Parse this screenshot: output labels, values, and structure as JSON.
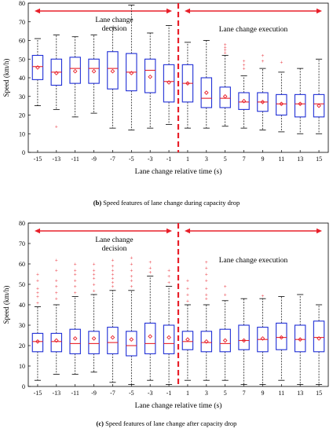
{
  "chart_data": [
    {
      "type": "box",
      "panel": "b",
      "title": "Speed features of lane change during capacity drop",
      "panel_label": "(b)",
      "xlabel": "Lane change relative time (s)",
      "ylabel": "Speed (km/h)",
      "ylim": [
        0,
        80
      ],
      "yticks": [
        0,
        10,
        20,
        30,
        40,
        50,
        60,
        70,
        80
      ],
      "categories": [
        "-15",
        "-13",
        "-11",
        "-9",
        "-7",
        "-5",
        "-3",
        "-1",
        "1",
        "3",
        "5",
        "7",
        "9",
        "11",
        "13",
        "15"
      ],
      "grid": false,
      "phase_labels": {
        "left": "Lane change\ndecision",
        "right": "Lane change execution"
      },
      "colors": {
        "box": "#1f2fd6",
        "median": "#e8202a",
        "mean": "#e8202a",
        "outlier": "#e8202a",
        "divider": "#e8202a",
        "arrow": "#e8202a",
        "whisker": "#000000"
      },
      "boxes": [
        {
          "x": "-15",
          "whislo": 25,
          "q1": 39,
          "med": 46,
          "q3": 52,
          "whishi": 61,
          "mean": 45.5,
          "fliers": []
        },
        {
          "x": "-13",
          "whislo": 23,
          "q1": 36,
          "med": 43,
          "q3": 50,
          "whishi": 63,
          "mean": 42.5,
          "fliers": [
            14
          ]
        },
        {
          "x": "-11",
          "whislo": 19,
          "q1": 37,
          "med": 45,
          "q3": 51,
          "whishi": 62,
          "mean": 43.5,
          "fliers": []
        },
        {
          "x": "-9",
          "whislo": 21,
          "q1": 37,
          "med": 45,
          "q3": 50,
          "whishi": 63,
          "mean": 43.5,
          "fliers": []
        },
        {
          "x": "-7",
          "whislo": 13,
          "q1": 34,
          "med": 45,
          "q3": 54,
          "whishi": 67,
          "mean": 43.5,
          "fliers": []
        },
        {
          "x": "-5",
          "whislo": 12,
          "q1": 33,
          "med": 43,
          "q3": 53,
          "whishi": 79,
          "mean": 42.5,
          "fliers": []
        },
        {
          "x": "-3",
          "whislo": 13,
          "q1": 32,
          "med": 44,
          "q3": 50,
          "whishi": 64,
          "mean": 40.5,
          "fliers": []
        },
        {
          "x": "-1",
          "whislo": 15,
          "q1": 27,
          "med": 38,
          "q3": 47,
          "whishi": 68,
          "mean": 37.5,
          "fliers": []
        },
        {
          "x": "1",
          "whislo": 13,
          "q1": 27,
          "med": 37,
          "q3": 47,
          "whishi": 59,
          "mean": 37,
          "fliers": []
        },
        {
          "x": "3",
          "whislo": 13,
          "q1": 24,
          "med": 29,
          "q3": 40,
          "whishi": 60,
          "mean": 32,
          "fliers": []
        },
        {
          "x": "5",
          "whislo": 14,
          "q1": 24,
          "med": 29,
          "q3": 35,
          "whishi": 52,
          "mean": 30,
          "fliers": [
            53.5,
            55,
            56.5,
            58
          ]
        },
        {
          "x": "7",
          "whislo": 13,
          "q1": 23,
          "med": 27,
          "q3": 32,
          "whishi": 41,
          "mean": 27.5,
          "fliers": [
            45,
            47,
            49
          ]
        },
        {
          "x": "9",
          "whislo": 12,
          "q1": 22,
          "med": 27,
          "q3": 32,
          "whishi": 45,
          "mean": 27,
          "fliers": [
            49,
            52
          ]
        },
        {
          "x": "11",
          "whislo": 11,
          "q1": 20,
          "med": 26,
          "q3": 31,
          "whishi": 43,
          "mean": 26,
          "fliers": [
            48.5
          ]
        },
        {
          "x": "13",
          "whislo": 10,
          "q1": 19,
          "med": 26,
          "q3": 31,
          "whishi": 45,
          "mean": 26,
          "fliers": []
        },
        {
          "x": "15",
          "whislo": 10,
          "q1": 19,
          "med": 26,
          "q3": 31,
          "whishi": 50,
          "mean": 25,
          "fliers": []
        }
      ]
    },
    {
      "type": "box",
      "panel": "c",
      "title": "Speed features of lane change after capacity drop",
      "panel_label": "(c)",
      "xlabel": "Lane change relative time (s)",
      "ylabel": "Speed (km/h)",
      "ylim": [
        0,
        80
      ],
      "yticks": [
        0,
        10,
        20,
        30,
        40,
        50,
        60,
        70,
        80
      ],
      "categories": [
        "-15",
        "-13",
        "-11",
        "-9",
        "-7",
        "-5",
        "-3",
        "-1",
        "1",
        "3",
        "5",
        "7",
        "9",
        "11",
        "13",
        "15"
      ],
      "grid": false,
      "phase_labels": {
        "left": "Lane change\ndecision",
        "right": "Lane change execution"
      },
      "colors": {
        "box": "#1f2fd6",
        "median": "#e8202a",
        "mean": "#e8202a",
        "outlier": "#e8202a",
        "divider": "#e8202a",
        "arrow": "#e8202a",
        "whisker": "#000000"
      },
      "boxes": [
        {
          "x": "-15",
          "whislo": 3,
          "q1": 17,
          "med": 22,
          "q3": 26,
          "whishi": 39,
          "mean": 22,
          "fliers": [
            41,
            44,
            46,
            48,
            52,
            55
          ]
        },
        {
          "x": "-13",
          "whislo": 6,
          "q1": 17,
          "med": 22,
          "q3": 26,
          "whishi": 40,
          "mean": 22.5,
          "fliers": [
            43,
            46,
            49,
            52,
            57,
            62
          ]
        },
        {
          "x": "-11",
          "whislo": 6,
          "q1": 16,
          "med": 21,
          "q3": 28,
          "whishi": 44,
          "mean": 23.5,
          "fliers": [
            46,
            49,
            52,
            55,
            57,
            60
          ]
        },
        {
          "x": "-9",
          "whislo": 7,
          "q1": 16,
          "med": 21,
          "q3": 27,
          "whishi": 45,
          "mean": 23.5,
          "fliers": [
            47,
            50,
            53,
            55,
            57,
            60
          ]
        },
        {
          "x": "-7",
          "whislo": 2,
          "q1": 16,
          "med": 21.5,
          "q3": 29,
          "whishi": 47,
          "mean": 24,
          "fliers": [
            49,
            51,
            53,
            55,
            57,
            59,
            62
          ]
        },
        {
          "x": "-5",
          "whislo": 1,
          "q1": 15,
          "med": 20,
          "q3": 27,
          "whishi": 47,
          "mean": 23,
          "fliers": [
            49,
            52,
            54,
            57,
            60,
            63
          ]
        },
        {
          "x": "-3",
          "whislo": 3,
          "q1": 16,
          "med": 21,
          "q3": 31,
          "whishi": 54,
          "mean": 24.5,
          "fliers": [
            56,
            58,
            61
          ]
        },
        {
          "x": "-1",
          "whislo": 1,
          "q1": 16,
          "med": 21,
          "q3": 30,
          "whishi": 49,
          "mean": 24,
          "fliers": [
            51,
            54,
            57
          ]
        },
        {
          "x": "1",
          "whislo": 3,
          "q1": 18,
          "med": 22,
          "q3": 27,
          "whishi": 40,
          "mean": 23,
          "fliers": [
            42,
            45,
            48,
            52
          ]
        },
        {
          "x": "3",
          "whislo": 3,
          "q1": 17,
          "med": 21.5,
          "q3": 27,
          "whishi": 40,
          "mean": 22,
          "fliers": [
            43,
            45,
            48,
            52,
            55,
            58,
            61
          ]
        },
        {
          "x": "5",
          "whislo": 3,
          "q1": 17,
          "med": 21,
          "q3": 28,
          "whishi": 42,
          "mean": 22.5,
          "fliers": [
            45,
            49
          ]
        },
        {
          "x": "7",
          "whislo": 1,
          "q1": 18,
          "med": 22.5,
          "q3": 30,
          "whishi": 43,
          "mean": 22.5,
          "fliers": []
        },
        {
          "x": "9",
          "whislo": 1,
          "q1": 17,
          "med": 23,
          "q3": 29,
          "whishi": 43,
          "mean": 23.5,
          "fliers": [
            44.5
          ]
        },
        {
          "x": "11",
          "whislo": 3,
          "q1": 18,
          "med": 24,
          "q3": 31,
          "whishi": 44,
          "mean": 24,
          "fliers": []
        },
        {
          "x": "13",
          "whislo": 1,
          "q1": 17,
          "med": 23,
          "q3": 30,
          "whishi": 45,
          "mean": 23,
          "fliers": []
        },
        {
          "x": "15",
          "whislo": 1,
          "q1": 17,
          "med": 24,
          "q3": 32,
          "whishi": 40,
          "mean": 23.5,
          "fliers": []
        }
      ]
    }
  ]
}
